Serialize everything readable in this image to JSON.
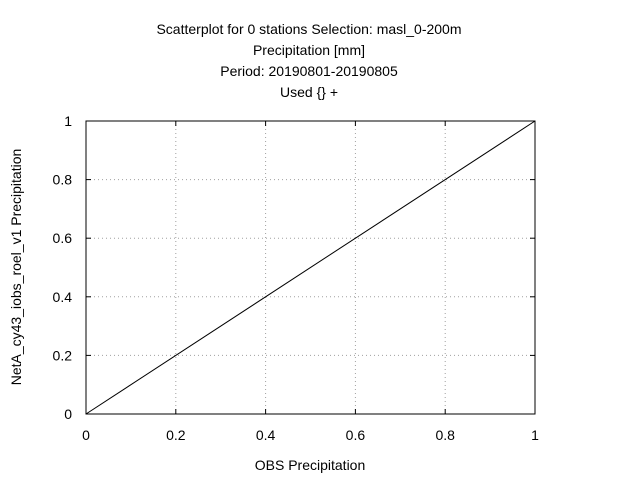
{
  "colors": {
    "background": "#ffffff",
    "axis": "#000000",
    "grid": "#a0a0a0",
    "series": "#000000"
  },
  "chart_data": {
    "type": "line",
    "title_lines": [
      "Scatterplot for    0 stations Selection: masl_0-200m",
      "Precipitation [mm]",
      "Period: 20190801-20190805",
      "Used {} +"
    ],
    "xlabel": "OBS Precipitation",
    "ylabel": "NetA_cy43_iobs_roel_v1 Precipitation",
    "xlim": [
      0,
      1
    ],
    "ylim": [
      0,
      1
    ],
    "xticks": [
      "0",
      "0.2",
      "0.4",
      "0.6",
      "0.8",
      "1"
    ],
    "yticks": [
      "0",
      "0.2",
      "0.4",
      "0.6",
      "0.8",
      "1"
    ],
    "grid": true,
    "grid_style": "dotted",
    "series": [
      {
        "x": [
          0,
          1
        ],
        "y": [
          0,
          1
        ]
      }
    ]
  }
}
